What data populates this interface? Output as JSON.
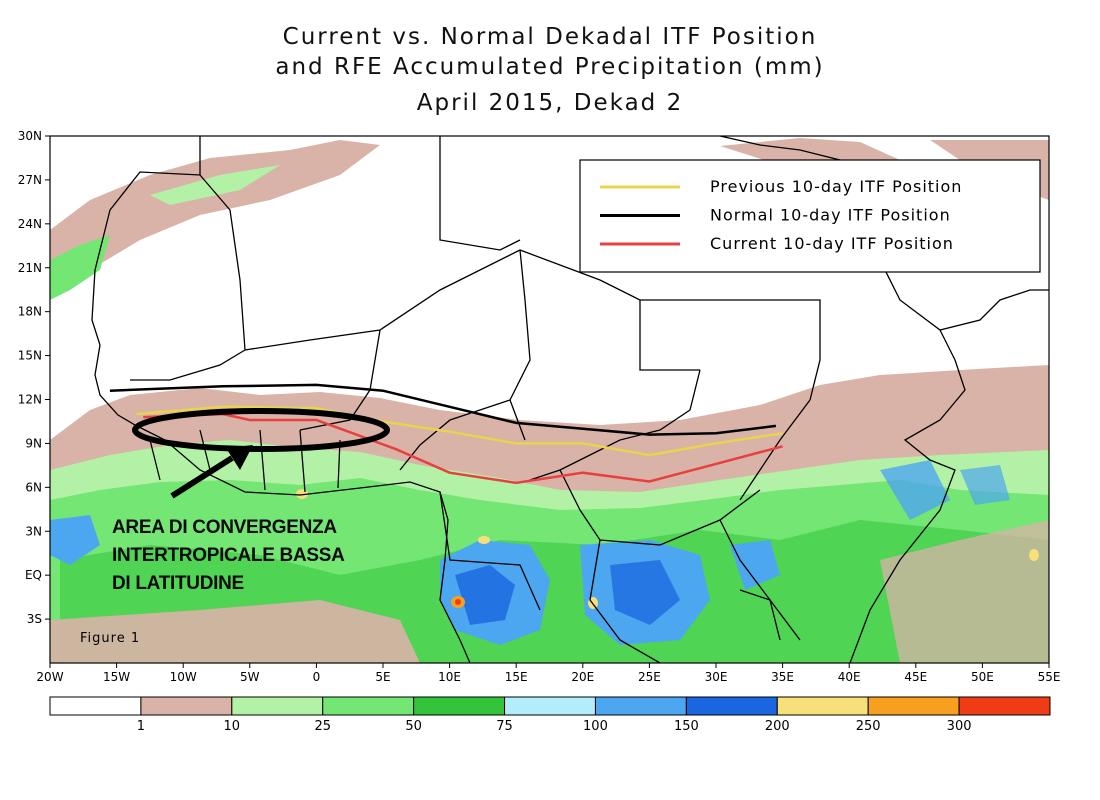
{
  "title": {
    "line1": "Current vs. Normal Dekadal ITF Position",
    "line2": "and RFE Accumulated Precipitation (mm)",
    "line3": "April 2015, Dekad 2"
  },
  "map": {
    "lon_range": [
      -20,
      55
    ],
    "lat_range": [
      -6,
      30
    ],
    "lat_ticks": [
      {
        "value": 30,
        "label": "30N"
      },
      {
        "value": 27,
        "label": "27N"
      },
      {
        "value": 24,
        "label": "24N"
      },
      {
        "value": 21,
        "label": "21N"
      },
      {
        "value": 18,
        "label": "18N"
      },
      {
        "value": 15,
        "label": "15N"
      },
      {
        "value": 12,
        "label": "12N"
      },
      {
        "value": 9,
        "label": "9N"
      },
      {
        "value": 6,
        "label": "6N"
      },
      {
        "value": 3,
        "label": "3N"
      },
      {
        "value": 0,
        "label": "EQ"
      },
      {
        "value": -3,
        "label": "3S"
      }
    ],
    "lon_ticks": [
      {
        "value": -20,
        "label": "20W"
      },
      {
        "value": -15,
        "label": "15W"
      },
      {
        "value": -10,
        "label": "10W"
      },
      {
        "value": -5,
        "label": "5W"
      },
      {
        "value": 0,
        "label": "0"
      },
      {
        "value": 5,
        "label": "5E"
      },
      {
        "value": 10,
        "label": "10E"
      },
      {
        "value": 15,
        "label": "15E"
      },
      {
        "value": 20,
        "label": "20E"
      },
      {
        "value": 25,
        "label": "25E"
      },
      {
        "value": 30,
        "label": "30E"
      },
      {
        "value": 35,
        "label": "35E"
      },
      {
        "value": 40,
        "label": "40E"
      },
      {
        "value": 45,
        "label": "45E"
      },
      {
        "value": 50,
        "label": "50E"
      },
      {
        "value": 55,
        "label": "55E"
      }
    ],
    "figure_label": "Figure 1"
  },
  "legend": {
    "items": [
      {
        "label": "Previous 10-day ITF Position",
        "color": "#e8d44d"
      },
      {
        "label": "Normal 10-day ITF Position",
        "color": "#000000"
      },
      {
        "label": "Current 10-day ITF Position",
        "color": "#e84040"
      }
    ]
  },
  "itf_lines": {
    "previous": [
      [
        -13.5,
        11.0
      ],
      [
        -7,
        11.5
      ],
      [
        0,
        11.4
      ],
      [
        5,
        10.5
      ],
      [
        10,
        9.8
      ],
      [
        15,
        9.0
      ],
      [
        20,
        9.0
      ],
      [
        25,
        8.2
      ],
      [
        30,
        9.0
      ],
      [
        35,
        9.7
      ]
    ],
    "normal": [
      [
        -15.5,
        12.6
      ],
      [
        -7,
        12.9
      ],
      [
        0,
        13.0
      ],
      [
        5,
        12.6
      ],
      [
        10,
        11.5
      ],
      [
        15,
        10.4
      ],
      [
        20,
        10.0
      ],
      [
        25,
        9.6
      ],
      [
        30,
        9.7
      ],
      [
        34.5,
        10.2
      ]
    ],
    "current": [
      [
        -13,
        10.8
      ],
      [
        -7,
        11.0
      ],
      [
        -5,
        10.6
      ],
      [
        0,
        10.6
      ],
      [
        3,
        9.6
      ],
      [
        6,
        8.6
      ],
      [
        10,
        7.0
      ],
      [
        15,
        6.3
      ],
      [
        20,
        7.0
      ],
      [
        25,
        6.4
      ],
      [
        30,
        7.6
      ],
      [
        35,
        8.8
      ]
    ]
  },
  "annotation": {
    "lines": [
      "AREA DI CONVERGENZA",
      "INTERTROPICALE BASSA",
      "DI LATITUDINE"
    ],
    "ellipse_color": "#000000"
  },
  "colorbar": {
    "colors": [
      "#ffffff",
      "#d9b3a8",
      "#b3f2a6",
      "#73e673",
      "#33c43b",
      "#b3ecfa",
      "#4da6f0",
      "#1a66e0",
      "#f7e07a",
      "#f7a020",
      "#f03c14"
    ],
    "labels": [
      "1",
      "10",
      "25",
      "50",
      "75",
      "100",
      "150",
      "200",
      "250",
      "300"
    ]
  }
}
